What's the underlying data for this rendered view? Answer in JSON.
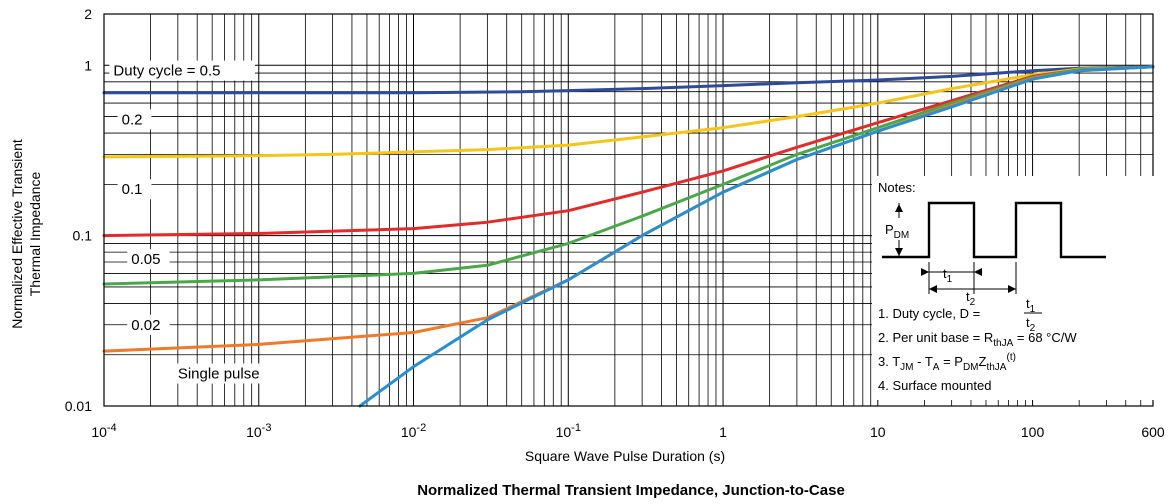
{
  "chart_data": {
    "type": "line",
    "title": "Normalized Thermal Transient Impedance, Junction-to-Case",
    "xlabel": "Square Wave Pulse Duration (s)",
    "ylabel_line1": "Normalized Effective Transient",
    "ylabel_line2": "Thermal Impedance",
    "x_scale": "log",
    "y_scale": "log",
    "xlim": [
      0.0001,
      600
    ],
    "ylim": [
      0.01,
      2
    ],
    "grid": true,
    "x_ticks": [
      {
        "value": 0.0001,
        "base": "10",
        "exp": "-4"
      },
      {
        "value": 0.001,
        "base": "10",
        "exp": "-3"
      },
      {
        "value": 0.01,
        "base": "10",
        "exp": "-2"
      },
      {
        "value": 0.1,
        "base": "10",
        "exp": "-1"
      },
      {
        "value": 1,
        "base": "1",
        "exp": ""
      },
      {
        "value": 10,
        "base": "10",
        "exp": ""
      },
      {
        "value": 100,
        "base": "100",
        "exp": ""
      },
      {
        "value": 600,
        "base": "600",
        "exp": ""
      }
    ],
    "y_ticks": [
      {
        "value": 0.01,
        "label": "0.01"
      },
      {
        "value": 0.1,
        "label": "0.1"
      },
      {
        "value": 1,
        "label": "1"
      },
      {
        "value": 2,
        "label": "2"
      }
    ],
    "series": [
      {
        "name": "Duty cycle = 0.5",
        "label_at": [
          0.000115,
          0.87
        ],
        "color": "#2e4a9a",
        "x": [
          0.0001,
          0.001,
          0.01,
          0.05,
          0.1,
          0.3,
          1,
          3,
          10,
          30,
          60,
          100,
          200,
          600
        ],
        "y": [
          0.69,
          0.69,
          0.69,
          0.7,
          0.71,
          0.73,
          0.76,
          0.79,
          0.82,
          0.86,
          0.9,
          0.93,
          0.96,
          0.98
        ]
      },
      {
        "name": "0.2",
        "label_at": [
          0.00013,
          0.45
        ],
        "color": "#f5c518",
        "x": [
          0.0001,
          0.001,
          0.003,
          0.01,
          0.03,
          0.1,
          0.3,
          1,
          3,
          10,
          30,
          100,
          200,
          600
        ],
        "y": [
          0.29,
          0.295,
          0.3,
          0.31,
          0.32,
          0.34,
          0.38,
          0.43,
          0.5,
          0.6,
          0.73,
          0.88,
          0.95,
          0.98
        ]
      },
      {
        "name": "0.1",
        "label_at": [
          0.00013,
          0.175
        ],
        "color": "#e32b2b",
        "x": [
          0.0001,
          0.001,
          0.01,
          0.03,
          0.1,
          0.3,
          1,
          3,
          10,
          30,
          100,
          200,
          600
        ],
        "y": [
          0.1,
          0.103,
          0.11,
          0.12,
          0.14,
          0.18,
          0.24,
          0.33,
          0.46,
          0.62,
          0.86,
          0.94,
          0.98
        ]
      },
      {
        "name": "0.05",
        "label_at": [
          0.00015,
          0.068
        ],
        "color": "#4aa84a",
        "x": [
          0.0001,
          0.001,
          0.01,
          0.03,
          0.1,
          0.3,
          1,
          3,
          10,
          30,
          100,
          200,
          600
        ],
        "y": [
          0.052,
          0.055,
          0.06,
          0.067,
          0.09,
          0.13,
          0.2,
          0.3,
          0.43,
          0.6,
          0.85,
          0.94,
          0.98
        ]
      },
      {
        "name": "0.02",
        "label_at": [
          0.00015,
          0.028
        ],
        "color": "#ef7a2a",
        "x": [
          0.0001,
          0.001,
          0.01,
          0.03,
          0.1,
          0.3,
          1,
          3,
          10,
          30,
          100,
          200,
          600
        ],
        "y": [
          0.021,
          0.023,
          0.027,
          0.033,
          0.055,
          0.1,
          0.18,
          0.28,
          0.41,
          0.58,
          0.84,
          0.93,
          0.98
        ]
      },
      {
        "name": "Single pulse",
        "label_at": [
          0.0003,
          0.0145
        ],
        "color": "#2a8fd0",
        "x": [
          0.0045,
          0.01,
          0.03,
          0.1,
          0.3,
          1,
          3,
          10,
          30,
          100,
          200,
          600
        ],
        "y": [
          0.01,
          0.017,
          0.032,
          0.055,
          0.1,
          0.18,
          0.28,
          0.41,
          0.57,
          0.83,
          0.93,
          0.98
        ]
      }
    ]
  },
  "notes": {
    "heading": "Notes:",
    "pdm_base": "P",
    "pdm_sub": "DM",
    "t1_base": "t",
    "t1_sub": "1",
    "t2_base": "t",
    "t2_sub": "2",
    "note1_prefix": "1. Duty cycle, D =",
    "note1_num_base": "t",
    "note1_num_sub": "1",
    "note1_den_base": "t",
    "note1_den_sub": "2",
    "note2_prefix": "2. Per unit base = R",
    "note2_sub": "thJA",
    "note2_suffix": " = 68 °C/W",
    "note3_a": "3. T",
    "note3_a_sub": "JM",
    "note3_b": " - T",
    "note3_b_sub": "A",
    "note3_c": " = P",
    "note3_c_sub": "DM",
    "note3_d": "Z",
    "note3_d_sub": "thJA",
    "note3_d_sup": "(t)",
    "note4": "4. Surface mounted"
  }
}
